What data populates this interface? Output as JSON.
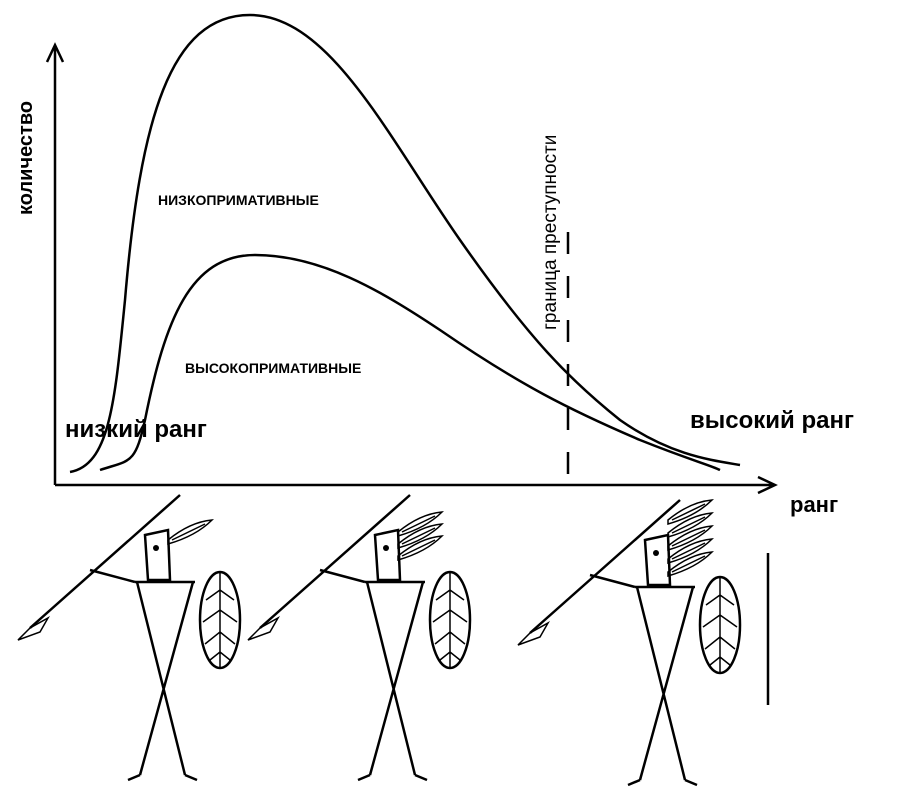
{
  "axes": {
    "y_label": "количество",
    "x_label": "ранг"
  },
  "curves": [
    {
      "label": "НИЗКОПРИМАТИВНЫЕ"
    },
    {
      "label": "ВЫСОКОПРИМАТИВНЫЕ"
    }
  ],
  "boundary": {
    "label": "граница преступности"
  },
  "rank_labels": {
    "low": "низкий ранг",
    "high": "высокий ранг"
  }
}
